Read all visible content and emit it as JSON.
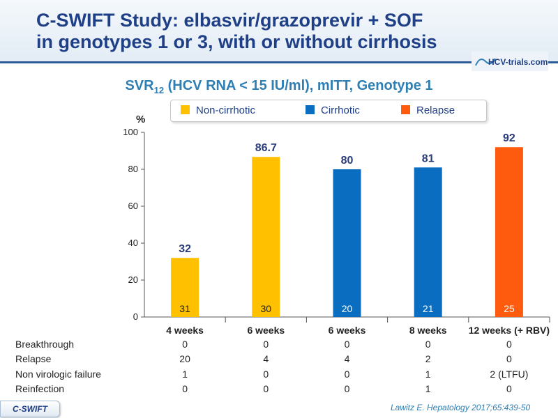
{
  "title": {
    "line1": "C-SWIFT Study: elbasvir/grazoprevir + SOF",
    "line2": "in genotypes 1 or 3, with or without cirrhosis"
  },
  "logo_text": "HCV-trials.com",
  "subtitle": {
    "main": "SVR",
    "sub": "12",
    "rest": " (HCV RNA < 15 IU/ml), mITT, Genotype 1"
  },
  "colors": {
    "non_cirrhotic": "#FFC000",
    "cirrhotic": "#0B6DC0",
    "relapse": "#FF5B0F",
    "value_label": "#2A3B7A",
    "title": "#1F3F86"
  },
  "legend": [
    {
      "label": "Non-cirrhotic",
      "color": "#FFC000"
    },
    {
      "label": "Cirrhotic",
      "color": "#0B6DC0"
    },
    {
      "label": "Relapse",
      "color": "#FF5B0F"
    }
  ],
  "chart_data": {
    "type": "bar",
    "ylabel": "%",
    "ylim": [
      0,
      100
    ],
    "yticks": [
      0,
      20,
      40,
      60,
      80,
      100
    ],
    "categories": [
      "4 weeks",
      "6 weeks",
      "6 weeks",
      "8 weeks",
      "12 weeks (+ RBV)"
    ],
    "values": [
      32,
      86.7,
      80,
      81,
      92
    ],
    "value_labels": [
      "32",
      "86.7",
      "80",
      "81",
      "92"
    ],
    "n_labels": [
      "31",
      "30",
      "20",
      "21",
      "25"
    ],
    "bar_colors": [
      "#FFC000",
      "#FFC000",
      "#0B6DC0",
      "#0B6DC0",
      "#FF5B0F"
    ],
    "grid": false,
    "legend_position": "top"
  },
  "table": {
    "rows": [
      {
        "label": "Breakthrough",
        "values": [
          "0",
          "0",
          "0",
          "0",
          "0"
        ]
      },
      {
        "label": "Relapse",
        "values": [
          "20",
          "4",
          "4",
          "2",
          "0"
        ]
      },
      {
        "label": "Non virologic failure",
        "values": [
          "1",
          "0",
          "0",
          "1",
          "2 (LTFU)"
        ]
      },
      {
        "label": "Reinfection",
        "values": [
          "0",
          "0",
          "0",
          "1",
          "0"
        ]
      }
    ]
  },
  "footer_tag": "C-SWIFT",
  "citation": "Lawitz  E. Hepatology 2017;65:439-50"
}
